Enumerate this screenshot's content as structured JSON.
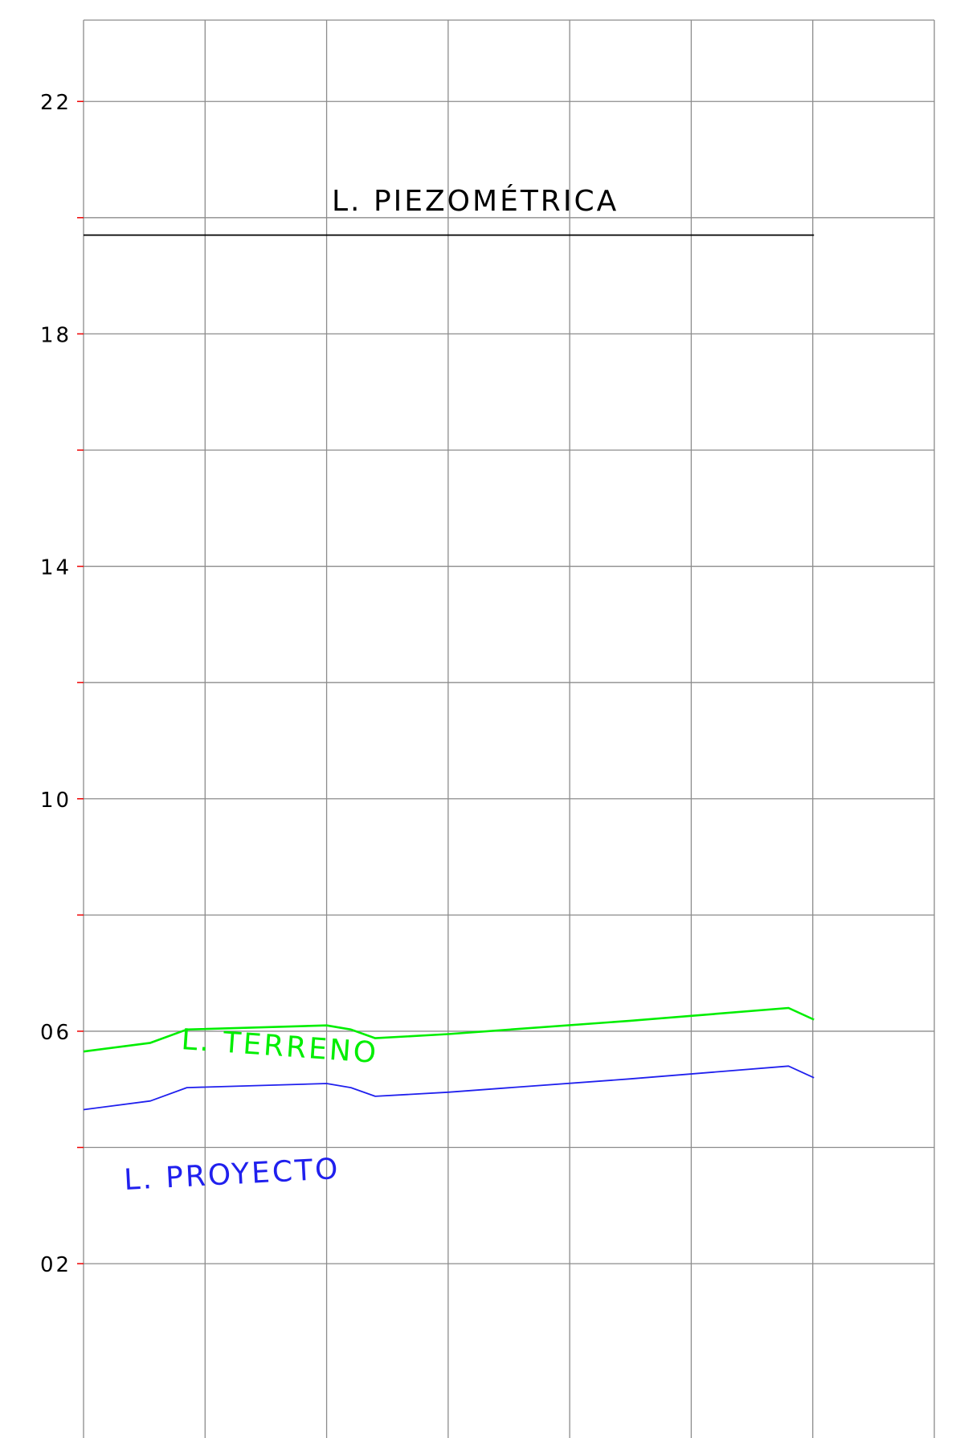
{
  "chart_data": {
    "type": "line",
    "title": "",
    "xlabel": "",
    "ylabel": "",
    "ylim": [
      -1.0,
      23.4
    ],
    "xlim": [
      0,
      7
    ],
    "grid": true,
    "y_gridlines": [
      2,
      4,
      6,
      8,
      10,
      12,
      14,
      16,
      18,
      20,
      22
    ],
    "x_gridlines": [
      0,
      1,
      2,
      3,
      4,
      5,
      6,
      7
    ],
    "y_tick_labels": [
      {
        "value": 22,
        "label": "22"
      },
      {
        "value": 18,
        "label": "18"
      },
      {
        "value": 14,
        "label": "14"
      },
      {
        "value": 10,
        "label": "10"
      },
      {
        "value": 6,
        "label": "06"
      },
      {
        "value": 2,
        "label": "02"
      }
    ],
    "series": [
      {
        "name": "L. PIEZOMÉTRICA",
        "color": "#000000",
        "x": [
          0,
          6.01
        ],
        "y": [
          19.7,
          19.7
        ]
      },
      {
        "name": "L. TERRENO",
        "color": "#00ee00",
        "x": [
          0,
          0.55,
          0.85,
          2.0,
          2.2,
          2.4,
          3.0,
          4.5,
          5.8,
          5.8,
          6.01
        ],
        "y": [
          5.65,
          5.8,
          6.03,
          6.1,
          6.03,
          5.88,
          5.95,
          6.18,
          6.4,
          6.4,
          6.2
        ]
      },
      {
        "name": "L. PROYECTO",
        "color": "#2020ee",
        "x": [
          0,
          0.55,
          0.85,
          2.0,
          2.2,
          2.4,
          3.0,
          4.5,
          5.8,
          6.01
        ],
        "y": [
          4.65,
          4.8,
          5.03,
          5.1,
          5.03,
          4.88,
          4.95,
          5.18,
          5.4,
          5.2
        ]
      }
    ],
    "annotations": [
      {
        "text": "L. PIEZOMÉTRICA",
        "series": "L. PIEZOMÉTRICA"
      },
      {
        "text": "L. TERRENO",
        "series": "L. TERRENO"
      },
      {
        "text": "L. PROYECTO",
        "series": "L. PROYECTO"
      }
    ],
    "tick_mark_color": "#ee0000",
    "grid_color": "#8c8c8c"
  }
}
